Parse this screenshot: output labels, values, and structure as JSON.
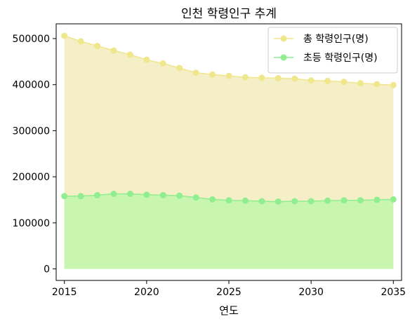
{
  "chart_data": {
    "type": "area",
    "title": "인천 학령인구 추계",
    "xlabel": "연도",
    "ylabel": "",
    "x": [
      2015,
      2016,
      2017,
      2018,
      2019,
      2020,
      2021,
      2022,
      2023,
      2024,
      2025,
      2026,
      2027,
      2028,
      2029,
      2030,
      2031,
      2032,
      2033,
      2034,
      2035
    ],
    "xlim": [
      2014.5,
      2035.5
    ],
    "ylim": [
      -25000,
      532000
    ],
    "x_ticks": [
      "2015",
      "2020",
      "2025",
      "2030",
      "2035"
    ],
    "y_ticks": [
      "0",
      "100000",
      "200000",
      "300000",
      "400000",
      "500000"
    ],
    "grid": false,
    "legend_position": "top-right",
    "series": [
      {
        "name": "총 학령인구(명)",
        "values": [
          506000,
          494000,
          484000,
          474000,
          465000,
          454000,
          446000,
          436000,
          426000,
          422000,
          419000,
          416000,
          415000,
          414000,
          413000,
          409000,
          408000,
          406000,
          403000,
          401000,
          399000
        ],
        "line_color": "#f0e68c",
        "fill_color": "#f5efc7"
      },
      {
        "name": "초등 학령인구(명)",
        "values": [
          158000,
          158000,
          160000,
          163000,
          163000,
          161000,
          160000,
          159000,
          155000,
          151000,
          149000,
          148000,
          147000,
          146000,
          147000,
          147000,
          148000,
          149000,
          149000,
          150000,
          151000
        ],
        "line_color": "#90ee90",
        "fill_color": "#c8f5b0"
      }
    ]
  }
}
